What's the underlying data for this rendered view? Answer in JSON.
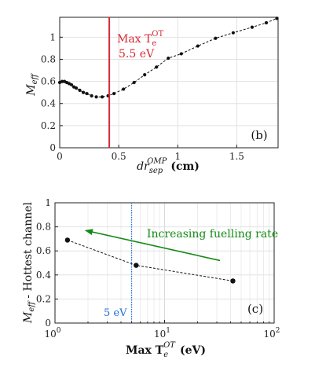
{
  "chart_data": [
    {
      "panel": "(b)",
      "type": "line",
      "xlabel": {
        "main": "dr",
        "sub": "sep",
        "sup": "OMP",
        "unit": "(cm)"
      },
      "ylabel": {
        "main": "M",
        "sub": "eff"
      },
      "xlim": [
        0,
        1.85
      ],
      "ylim": [
        0,
        1.18
      ],
      "xticks": [
        0,
        0.5,
        1,
        1.5
      ],
      "xtick_labels": [
        "0",
        "0.5",
        "1",
        "1.5"
      ],
      "yticks": [
        0,
        0.2,
        0.4,
        0.6,
        0.8,
        1
      ],
      "ytick_labels": [
        "0",
        "0.2",
        "0.4",
        "0.6",
        "0.8",
        "1"
      ],
      "grid": true,
      "series": [
        {
          "style": "black dashed line with dot markers",
          "x": [
            0.0,
            0.02,
            0.04,
            0.06,
            0.08,
            0.1,
            0.12,
            0.14,
            0.17,
            0.2,
            0.23,
            0.27,
            0.31,
            0.36,
            0.41,
            0.46,
            0.54,
            0.63,
            0.72,
            0.82,
            0.92,
            1.03,
            1.17,
            1.32,
            1.47,
            1.63,
            1.75,
            1.84
          ],
          "y": [
            0.59,
            0.6,
            0.6,
            0.59,
            0.58,
            0.57,
            0.55,
            0.54,
            0.52,
            0.5,
            0.49,
            0.47,
            0.46,
            0.46,
            0.47,
            0.49,
            0.53,
            0.59,
            0.66,
            0.73,
            0.81,
            0.85,
            0.92,
            0.99,
            1.04,
            1.09,
            1.13,
            1.17
          ]
        }
      ],
      "vline": {
        "x": 0.42,
        "color": "#d42a35"
      },
      "annotation": {
        "line1": "Max T",
        "line1_sub": "e",
        "line1_sup": "OT",
        "line2": "5.5 eV",
        "color": "#d42a35"
      }
    },
    {
      "panel": "(c)",
      "type": "line",
      "xscale": "log",
      "xlabel": {
        "main": "Max T",
        "sub": "e",
        "sup": "OT",
        "unit": "(eV)"
      },
      "ylabel": {
        "main": "M",
        "sub": "eff",
        "rest": "- Hottest channel"
      },
      "xlim": [
        1,
        100
      ],
      "ylim": [
        0,
        1
      ],
      "xticks": [
        1,
        10,
        100
      ],
      "xtick_labels": [
        {
          "base": "10",
          "exp": "0"
        },
        {
          "base": "10",
          "exp": "1"
        },
        {
          "base": "10",
          "exp": "2"
        }
      ],
      "yticks": [
        0,
        0.2,
        0.4,
        0.6,
        0.8,
        1
      ],
      "ytick_labels": [
        "0",
        "0.2",
        "0.4",
        "0.6",
        "0.8",
        "1"
      ],
      "grid": true,
      "series": [
        {
          "style": "black dashed line with round markers",
          "x": [
            1.3,
            5.5,
            42
          ],
          "y": [
            0.69,
            0.48,
            0.35
          ]
        }
      ],
      "vline": {
        "x": 5,
        "color": "#1f6fd6",
        "style": "dotted",
        "label": "5 eV"
      },
      "arrow": {
        "from": [
          32,
          0.52
        ],
        "to": [
          1.9,
          0.77
        ],
        "color": "#138a13",
        "label": "Increasing fuelling rate"
      }
    }
  ],
  "colors": {
    "axis": "#222222",
    "grid": "#e2e2e2",
    "data": "#111111",
    "red": "#d42a35",
    "blue": "#1f6fd6",
    "green": "#138a13"
  }
}
